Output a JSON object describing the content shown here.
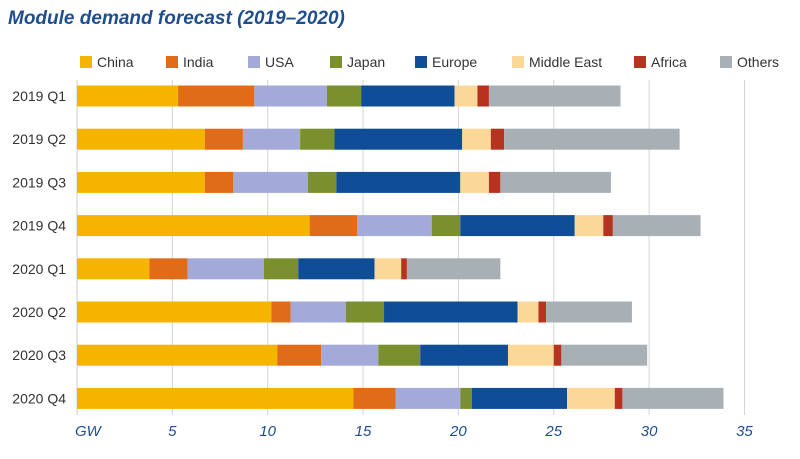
{
  "title": "Module demand forecast (2019–2020)",
  "chart_data": {
    "type": "bar",
    "orientation": "horizontal",
    "stacked": true,
    "categories": [
      "2019 Q1",
      "2019 Q2",
      "2019 Q3",
      "2019 Q4",
      "2020 Q1",
      "2020 Q2",
      "2020 Q3",
      "2020 Q4"
    ],
    "series": [
      {
        "name": "China",
        "color": "#f5b400",
        "values": [
          5.3,
          6.7,
          6.7,
          12.2,
          3.8,
          10.2,
          10.5,
          14.5
        ]
      },
      {
        "name": "India",
        "color": "#e06c1a",
        "values": [
          4.0,
          2.0,
          1.5,
          2.5,
          2.0,
          1.0,
          2.3,
          2.2
        ]
      },
      {
        "name": "USA",
        "color": "#a3a9d9",
        "values": [
          3.8,
          3.0,
          3.9,
          3.9,
          4.0,
          2.9,
          3.0,
          3.4
        ]
      },
      {
        "name": "Japan",
        "color": "#7a8f2e",
        "values": [
          1.8,
          1.8,
          1.5,
          1.5,
          1.8,
          2.0,
          2.2,
          0.6
        ]
      },
      {
        "name": "Europe",
        "color": "#0f4d96",
        "values": [
          4.9,
          6.7,
          6.5,
          6.0,
          4.0,
          7.0,
          4.6,
          5.0
        ]
      },
      {
        "name": "Middle East",
        "color": "#fcd898",
        "values": [
          1.2,
          1.5,
          1.5,
          1.5,
          1.4,
          1.1,
          2.4,
          2.5
        ]
      },
      {
        "name": "Africa",
        "color": "#b5331f",
        "values": [
          0.6,
          0.7,
          0.6,
          0.5,
          0.3,
          0.4,
          0.4,
          0.4
        ]
      },
      {
        "name": "Others",
        "color": "#a8b0b6",
        "values": [
          6.9,
          9.2,
          5.8,
          4.6,
          4.9,
          4.5,
          4.5,
          5.3
        ]
      }
    ],
    "xlabel": "GW",
    "xticks": [
      5,
      10,
      15,
      20,
      25,
      30,
      35
    ],
    "xlim": [
      0,
      35
    ],
    "grid": true,
    "legend_position": "top"
  }
}
